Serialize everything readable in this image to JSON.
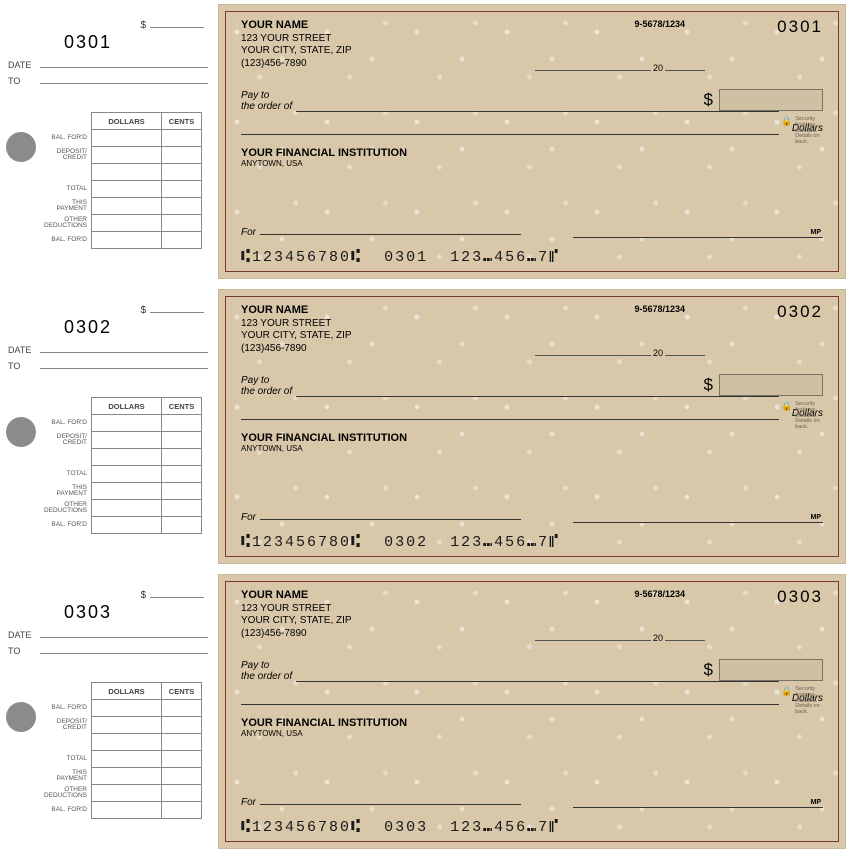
{
  "colors": {
    "check_bg": "#d8c7a8",
    "border_accent": "#7a3a2a",
    "stub_hole": "#8b8b8b",
    "line": "#333333"
  },
  "stub": {
    "date_label": "DATE",
    "to_label": "TO",
    "dollars_header": "DOLLARS",
    "cents_header": "CENTS",
    "rows": {
      "bal_ford_top": "BAL. FOR'D",
      "deposit": "DEPOSIT/\nCREDIT",
      "blank": "",
      "total": "TOTAL",
      "this_payment": "THIS\nPAYMENT",
      "other": "OTHER\nDEDUCTIONS",
      "bal_ford_bot": "BAL. FOR'D"
    }
  },
  "check_template": {
    "name": "YOUR NAME",
    "street": "123 YOUR STREET",
    "csz": "YOUR CITY, STATE, ZIP",
    "phone": "(123)456-7890",
    "routing_hint": "9-5678/1234",
    "pay_to_label": "Pay to\nthe order of",
    "dollar_sign": "$",
    "dollars_word": "Dollars",
    "security_note": "Security features included. Details on back.",
    "bank_name": "YOUR FINANCIAL INSTITUTION",
    "bank_loc": "ANYTOWN, USA",
    "for_label": "For",
    "mp": "MP",
    "year_prefix": "20",
    "micr_routing": "123456780",
    "micr_account": "123⑉456⑉7"
  },
  "checks": [
    {
      "number": "0301",
      "micr_seq": "0301"
    },
    {
      "number": "0302",
      "micr_seq": "0302"
    },
    {
      "number": "0303",
      "micr_seq": "0303"
    }
  ]
}
